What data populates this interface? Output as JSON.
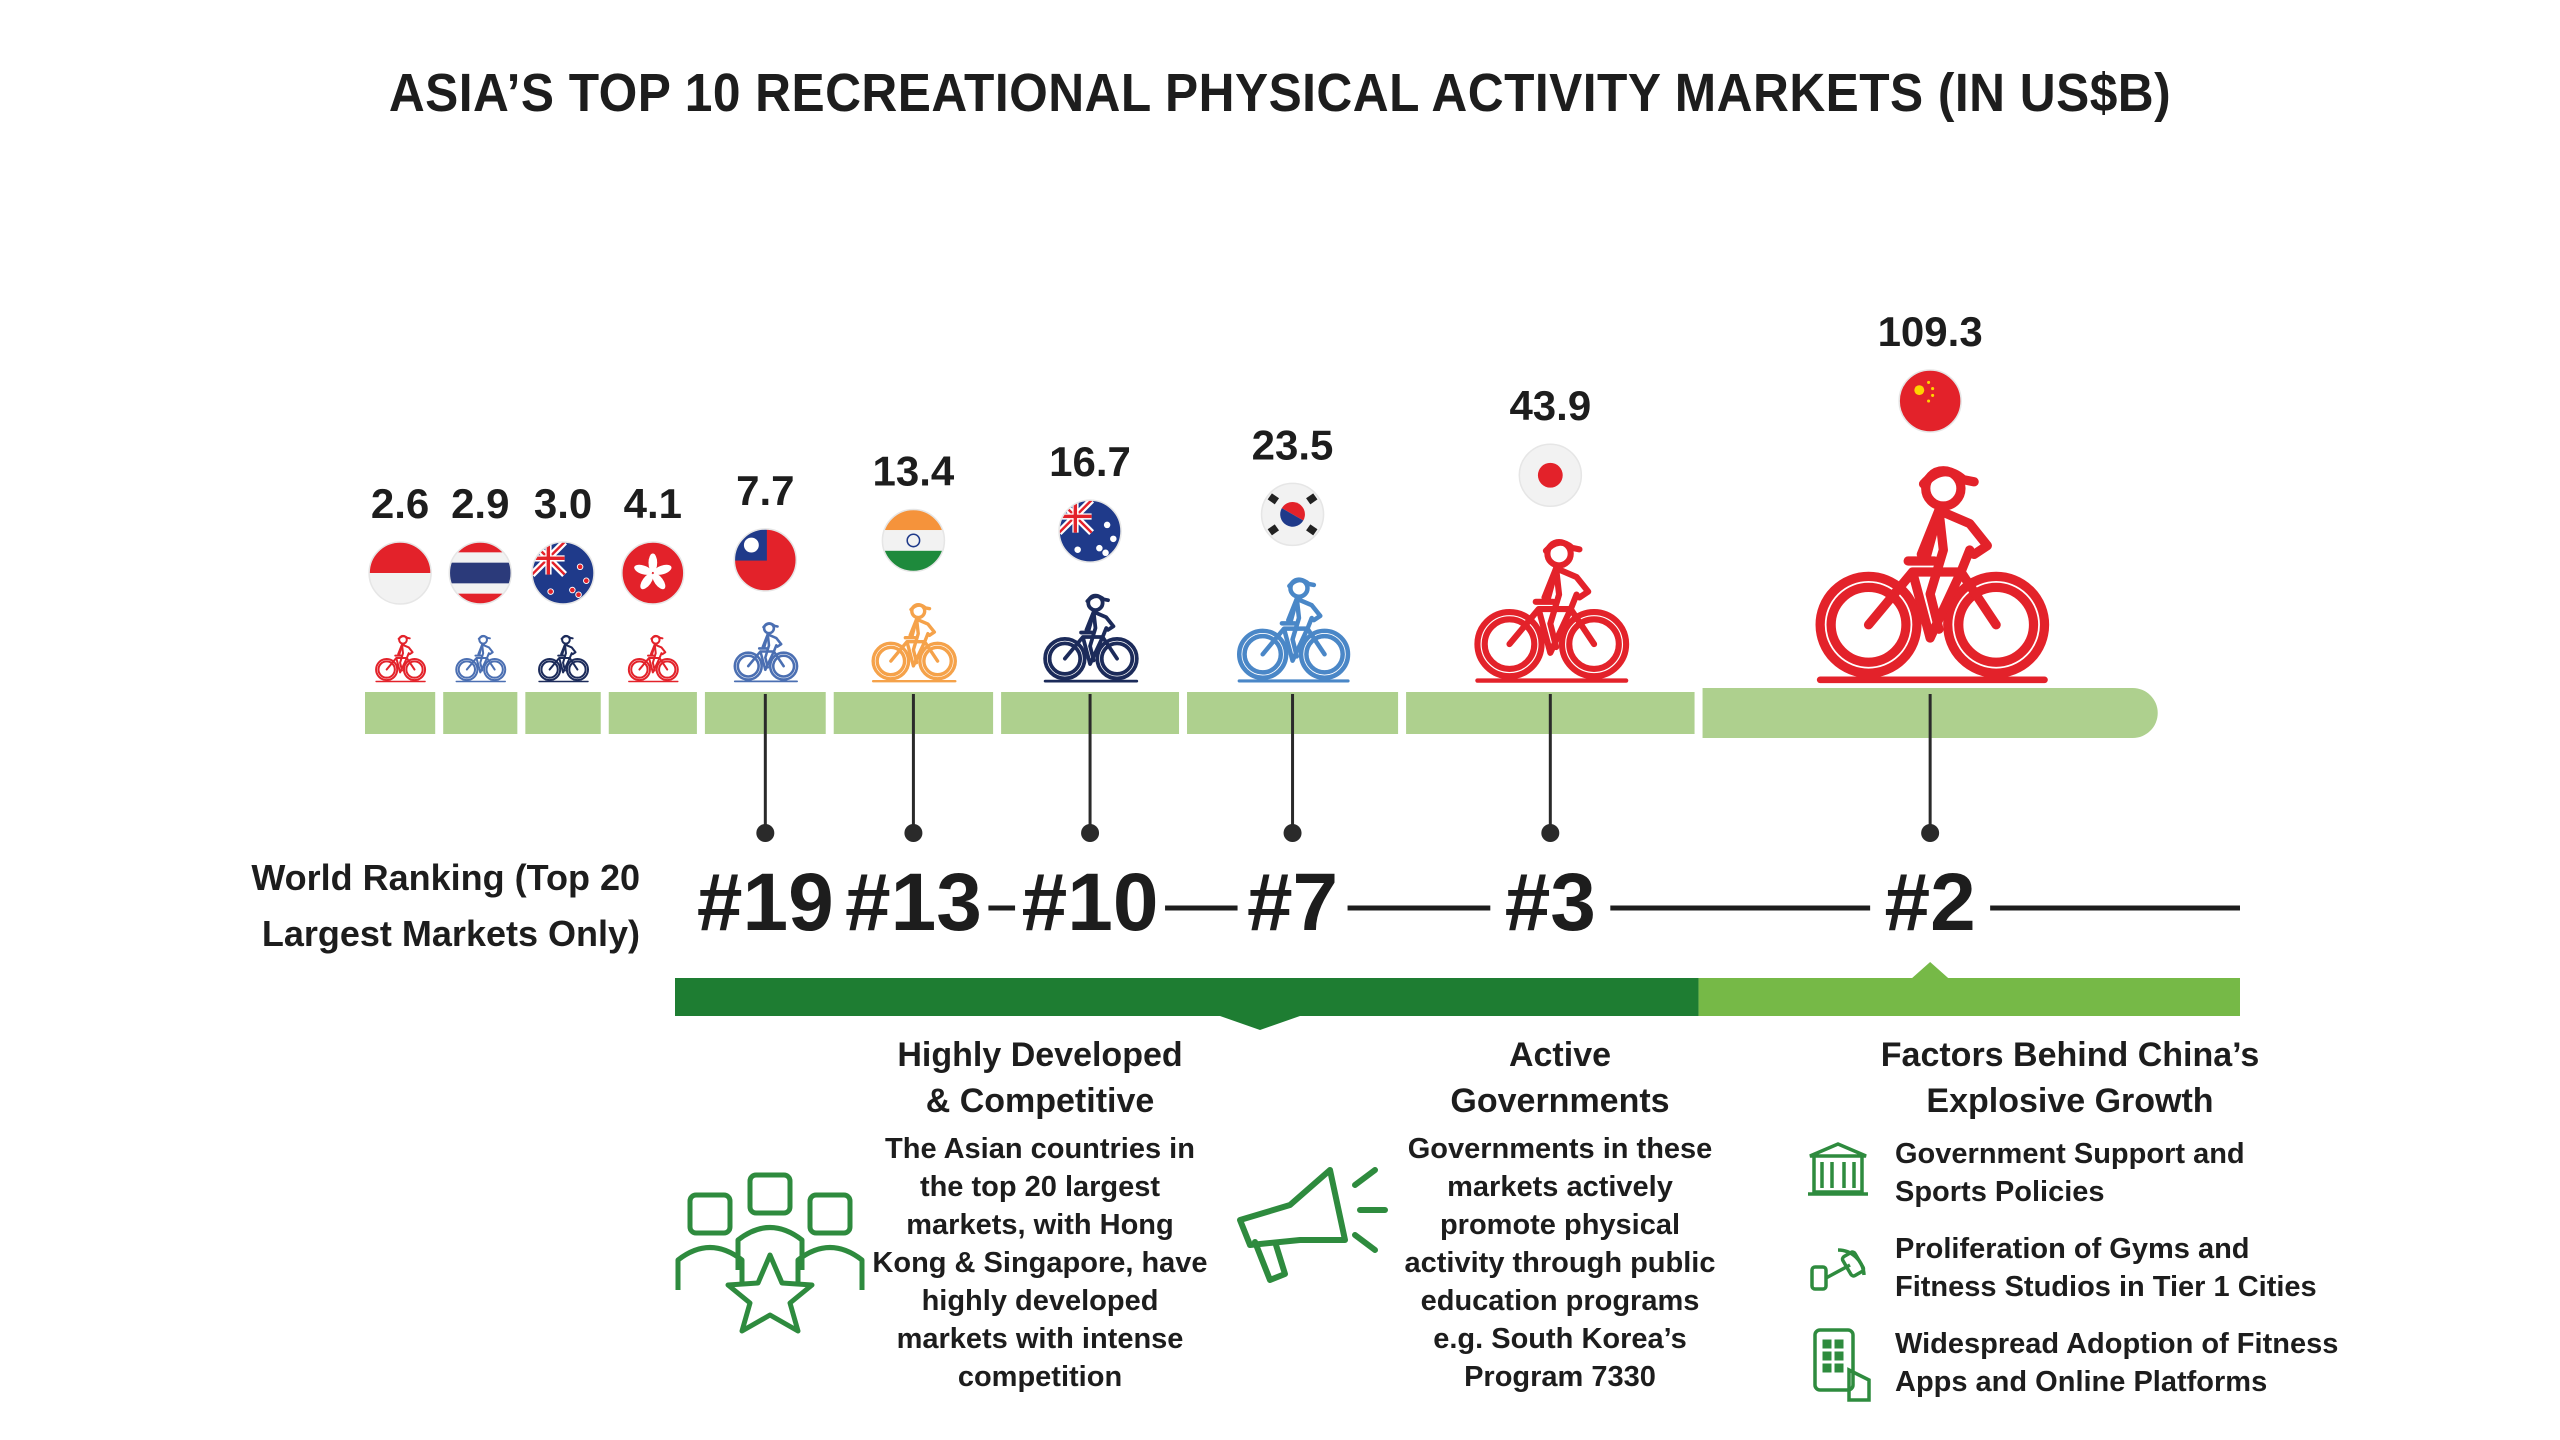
{
  "title": "ASIA’S TOP 10 RECREATIONAL PHYSICAL ACTIVITY MARKETS (IN US$B)",
  "world_ranking_label": "World Ranking (Top 20 Largest Markets Only)",
  "colors": {
    "track": "#aed08e",
    "dark_green": "#1e7d32",
    "light_green": "#76b947",
    "icon_green": "#2e8b3e",
    "red": "#e3222a",
    "blue": "#4b6fb2",
    "navy": "#1c2b5a",
    "orange": "#f5a24a",
    "sky": "#4a87c7",
    "text": "#1d1d1d"
  },
  "chart_data": {
    "type": "bar",
    "title": "ASIA’S TOP 10 RECREATIONAL PHYSICAL ACTIVITY MARKETS (IN US$B)",
    "unit": "US$B",
    "values": [
      2.6,
      2.9,
      3.0,
      4.1,
      7.7,
      13.4,
      16.7,
      23.5,
      43.9,
      109.3
    ],
    "value_labels": [
      "2.6",
      "2.9",
      "3.0",
      "4.1",
      "7.7",
      "13.4",
      "16.7",
      "23.5",
      "43.9",
      "109.3"
    ],
    "markers": [
      {
        "flag": "indonesia-flag-icon",
        "color": "#e3222a"
      },
      {
        "flag": "thailand-flag-icon",
        "color": "#4b6fb2"
      },
      {
        "flag": "new-zealand-flag-icon",
        "color": "#1c2b5a"
      },
      {
        "flag": "hong-kong-flag-icon",
        "color": "#e3222a"
      },
      {
        "flag": "taiwan-flag-icon",
        "color": "#4b6fb2"
      },
      {
        "flag": "india-flag-icon",
        "color": "#f5a24a"
      },
      {
        "flag": "australia-flag-icon",
        "color": "#1c2b5a"
      },
      {
        "flag": "south-korea-flag-icon",
        "color": "#4a87c7"
      },
      {
        "flag": "japan-flag-icon",
        "color": "#e3222a"
      },
      {
        "flag": "china-flag-icon",
        "color": "#e3222a"
      }
    ],
    "world_ranks": [
      {
        "index": 4,
        "label": "#19"
      },
      {
        "index": 5,
        "label": "#13"
      },
      {
        "index": 6,
        "label": "#10"
      },
      {
        "index": 7,
        "label": "#7"
      },
      {
        "index": 8,
        "label": "#3"
      },
      {
        "index": 9,
        "label": "#2"
      }
    ]
  },
  "sections": {
    "developed": {
      "heading_1": "Highly Developed",
      "heading_2": "& Competitive",
      "lines": [
        "The Asian countries in",
        "the top 20 largest",
        "markets, with Hong",
        "Kong & Singapore, have",
        "highly developed",
        "markets with intense",
        "competition"
      ],
      "icon": "team-star-icon"
    },
    "governments": {
      "heading_1": "Active",
      "heading_2": "Governments",
      "lines": [
        "Governments in these",
        "markets actively",
        "promote physical",
        "activity through public",
        "education programs",
        "e.g. South Korea’s",
        "Program 7330"
      ],
      "icon": "megaphone-icon"
    },
    "china": {
      "heading_1": "Factors Behind China’s",
      "heading_2": "Explosive Growth",
      "factors": [
        {
          "line_1": "Government Support and",
          "line_2": "Sports Policies",
          "icon": "government-building-icon"
        },
        {
          "line_1": "Proliferation  of Gyms and",
          "line_2": "Fitness Studios in Tier 1 Cities",
          "icon": "dumbbell-icon"
        },
        {
          "line_1": "Widespread Adoption of Fitness",
          "line_2": "Apps and Online Platforms",
          "icon": "mobile-app-icon"
        }
      ]
    }
  }
}
